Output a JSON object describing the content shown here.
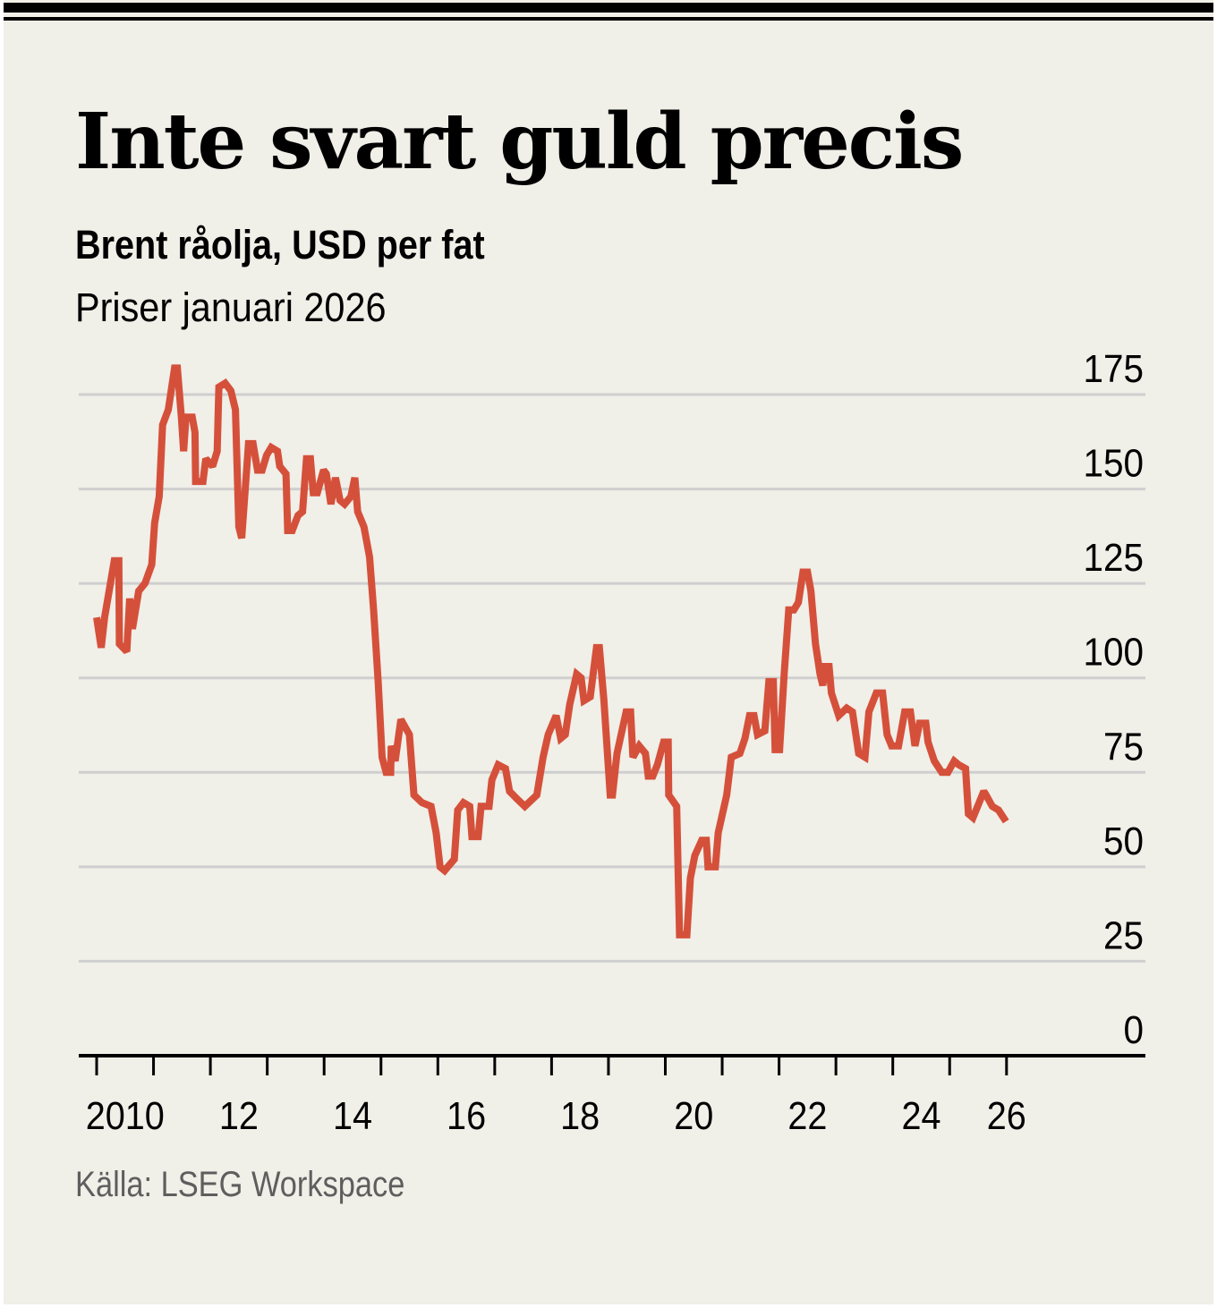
{
  "header": {
    "title": "Inte svart guld precis",
    "subtitle": "Brent råolja, USD per fat",
    "note": "Priser januari 2026"
  },
  "footer": {
    "source": "Källa: LSEG Workspace"
  },
  "colors": {
    "background": "#f0efe8",
    "line": "#d5503a",
    "grid": "#cfcfcf",
    "axis": "#000000",
    "source_text": "#5e5e5e"
  },
  "chart_data": {
    "type": "line",
    "title": "Inte svart guld precis",
    "subtitle": "Brent råolja, USD per fat",
    "xlabel": "",
    "ylabel": "USD per fat",
    "xlim": [
      2010,
      2028.5
    ],
    "ylim": [
      0,
      175
    ],
    "grid": true,
    "y_axis_side": "right",
    "yticks": [
      0,
      25,
      50,
      75,
      100,
      125,
      150,
      175
    ],
    "ytick_labels": [
      "0",
      "25",
      "50",
      "75",
      "100",
      "125",
      "150",
      "175"
    ],
    "xticks": [
      2010,
      2011,
      2012,
      2013,
      2014,
      2015,
      2016,
      2017,
      2018,
      2019,
      2020,
      2021,
      2022,
      2023,
      2024,
      2025,
      2026
    ],
    "xtick_labels": [
      {
        "label": "2010",
        "at": 2010.5
      },
      {
        "label": "12",
        "at": 2012.5
      },
      {
        "label": "14",
        "at": 2014.5
      },
      {
        "label": "16",
        "at": 2016.5
      },
      {
        "label": "18",
        "at": 2018.5
      },
      {
        "label": "20",
        "at": 2020.5
      },
      {
        "label": "22",
        "at": 2022.5
      },
      {
        "label": "24",
        "at": 2024.5
      },
      {
        "label": "26",
        "at": 2026.0
      }
    ],
    "series": [
      {
        "name": "Brent råolja",
        "x": [
          2010.0,
          2010.08,
          2010.14,
          2010.31,
          2010.39,
          2010.4,
          2010.53,
          2010.58,
          2010.63,
          2010.74,
          2010.85,
          2010.97,
          2011.02,
          2011.1,
          2011.16,
          2011.26,
          2011.37,
          2011.42,
          2011.49,
          2011.53,
          2011.57,
          2011.68,
          2011.73,
          2011.74,
          2011.87,
          2011.92,
          2012.04,
          2012.12,
          2012.15,
          2012.26,
          2012.36,
          2012.44,
          2012.5,
          2012.55,
          2012.67,
          2012.75,
          2012.83,
          2012.91,
          2012.99,
          2013.07,
          2013.18,
          2013.22,
          2013.33,
          2013.36,
          2013.44,
          2013.54,
          2013.62,
          2013.69,
          2013.76,
          2013.81,
          2013.88,
          2013.99,
          2014.04,
          2014.12,
          2014.2,
          2014.28,
          2014.36,
          2014.47,
          2014.54,
          2014.59,
          2014.7,
          2014.8,
          2014.87,
          2014.95,
          2015.02,
          2015.09,
          2015.17,
          2015.18,
          2015.25,
          2015.35,
          2015.5,
          2015.58,
          2015.72,
          2015.88,
          2015.97,
          2016.04,
          2016.12,
          2016.29,
          2016.35,
          2016.45,
          2016.56,
          2016.6,
          2016.71,
          2016.76,
          2016.9,
          2016.95,
          2017.06,
          2017.19,
          2017.26,
          2017.39,
          2017.53,
          2017.74,
          2017.85,
          2017.94,
          2018.08,
          2018.16,
          2018.24,
          2018.32,
          2018.44,
          2018.52,
          2018.57,
          2018.68,
          2018.79,
          2018.84,
          2018.92,
          2019.03,
          2019.07,
          2019.15,
          2019.31,
          2019.39,
          2019.43,
          2019.54,
          2019.65,
          2019.7,
          2019.78,
          2019.86,
          2019.97,
          2020.05,
          2020.06,
          2020.2,
          2020.25,
          2020.38,
          2020.44,
          2020.52,
          2020.64,
          2020.72,
          2020.75,
          2020.88,
          2020.93,
          2021.08,
          2021.16,
          2021.31,
          2021.4,
          2021.48,
          2021.56,
          2021.62,
          2021.75,
          2021.82,
          2021.9,
          2021.93,
          2022.01,
          2022.09,
          2022.17,
          2022.26,
          2022.34,
          2022.42,
          2022.5,
          2022.56,
          2022.64,
          2022.72,
          2022.77,
          2022.81,
          2022.88,
          2022.92,
          2023.05,
          2023.19,
          2023.29,
          2023.4,
          2023.51,
          2023.58,
          2023.71,
          2023.82,
          2023.9,
          2023.98,
          2024.1,
          2024.21,
          2024.31,
          2024.39,
          2024.47,
          2024.58,
          2024.62,
          2024.73,
          2024.86,
          2024.97,
          2025.08,
          2025.16,
          2025.28,
          2025.33,
          2025.41,
          2025.6,
          2025.64,
          2025.75,
          2025.86,
          2025.99
        ],
        "values": [
          116,
          108,
          116,
          131,
          131,
          109,
          107,
          121,
          113,
          123,
          125,
          130,
          141,
          148,
          167,
          171,
          182,
          182,
          169,
          160,
          169,
          169,
          165,
          152,
          152,
          158,
          156,
          160,
          177,
          178,
          176,
          171,
          140,
          137,
          162,
          162,
          155,
          155,
          159,
          161,
          160,
          156,
          154,
          139,
          139,
          143,
          144,
          158,
          158,
          149,
          149,
          155,
          154,
          146,
          153,
          147,
          146,
          148,
          153,
          144,
          140,
          132,
          118,
          99,
          79,
          75,
          75,
          82,
          78,
          89,
          85,
          69,
          67,
          66,
          59,
          50,
          49,
          52,
          65,
          67,
          66,
          58,
          58,
          66,
          66,
          73,
          77,
          76,
          70,
          68,
          66,
          69,
          79,
          85,
          90,
          84,
          85,
          93,
          101,
          100,
          94,
          95,
          108,
          108,
          94,
          69,
          69,
          80,
          91,
          91,
          79,
          82,
          80,
          74,
          74,
          77,
          83,
          83,
          69,
          66,
          32,
          32,
          47,
          53,
          57,
          57,
          50,
          50,
          59,
          69,
          79,
          80,
          84,
          90,
          90,
          85,
          86,
          99,
          99,
          81,
          81,
          101,
          118,
          118,
          120,
          128,
          128,
          123,
          109,
          101,
          98,
          103,
          103,
          96,
          90,
          92,
          91,
          80,
          79,
          91,
          96,
          96,
          85,
          82,
          82,
          91,
          91,
          82,
          88,
          88,
          83,
          78,
          75,
          75,
          78,
          77,
          76,
          64,
          63,
          70,
          69,
          66,
          65,
          62
        ]
      }
    ]
  }
}
